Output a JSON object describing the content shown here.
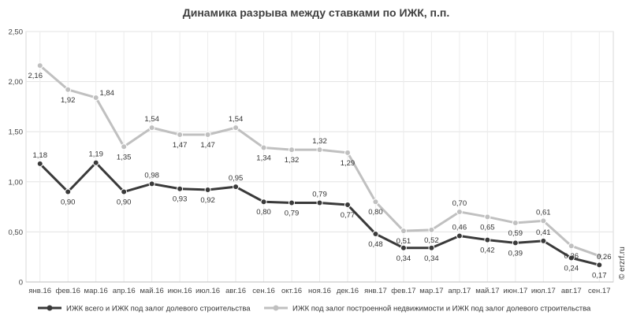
{
  "chart_data": {
    "type": "line",
    "title": "Динамика разрыва между ставками по ИЖК, п.п.",
    "categories": [
      "янв.16",
      "фев.16",
      "мар.16",
      "апр.16",
      "май.16",
      "июн.16",
      "июл.16",
      "авг.16",
      "сен.16",
      "окт.16",
      "ноя.16",
      "дек.16",
      "янв.17",
      "фев.17",
      "мар.17",
      "апр.17",
      "май.17",
      "июн.17",
      "июл.17",
      "авг.17",
      "сен.17"
    ],
    "ylim": [
      0,
      2.5
    ],
    "yticks": [
      "0",
      "0,50",
      "1,00",
      "1,50",
      "2,00",
      "2,50"
    ],
    "grid": true,
    "legend_position": "bottom",
    "series": [
      {
        "name": "ИЖК всего и ИЖК под залог долевого строительства",
        "color": "#3a3a3a",
        "values": [
          1.18,
          0.9,
          1.19,
          0.9,
          0.98,
          0.93,
          0.92,
          0.95,
          0.8,
          0.79,
          0.79,
          0.77,
          0.48,
          0.34,
          0.34,
          0.46,
          0.42,
          0.39,
          0.41,
          0.24,
          0.17
        ],
        "labels": [
          "1,18",
          "0,90",
          "1,19",
          "0,90",
          "0,98",
          "0,93",
          "0,92",
          "0,95",
          "0,80",
          "0,79",
          "0,79",
          "0,77",
          "0,48",
          "0,34",
          "0,34",
          "0,46",
          "0,42",
          "0,39",
          "0,41",
          "0,24",
          "0,17"
        ]
      },
      {
        "name": "ИЖК под залог построенной недвижимости и ИЖК под залог долевого строительства",
        "color": "#c0c0c0",
        "values": [
          2.16,
          1.92,
          1.84,
          1.35,
          1.54,
          1.47,
          1.47,
          1.54,
          1.34,
          1.32,
          1.32,
          1.29,
          0.8,
          0.51,
          0.52,
          0.7,
          0.65,
          0.59,
          0.61,
          0.36,
          0.26
        ],
        "labels": [
          "2,16",
          "1,92",
          "1,84",
          "1,35",
          "1,54",
          "1,47",
          "1,47",
          "1,54",
          "1,34",
          "1,32",
          "1,32",
          "1,29",
          "0,80",
          "0,51",
          "0,52",
          "0,70",
          "0,65",
          "0,59",
          "0,61",
          "0,36",
          "0,26"
        ]
      }
    ]
  },
  "watermark": "© erzrf.ru"
}
